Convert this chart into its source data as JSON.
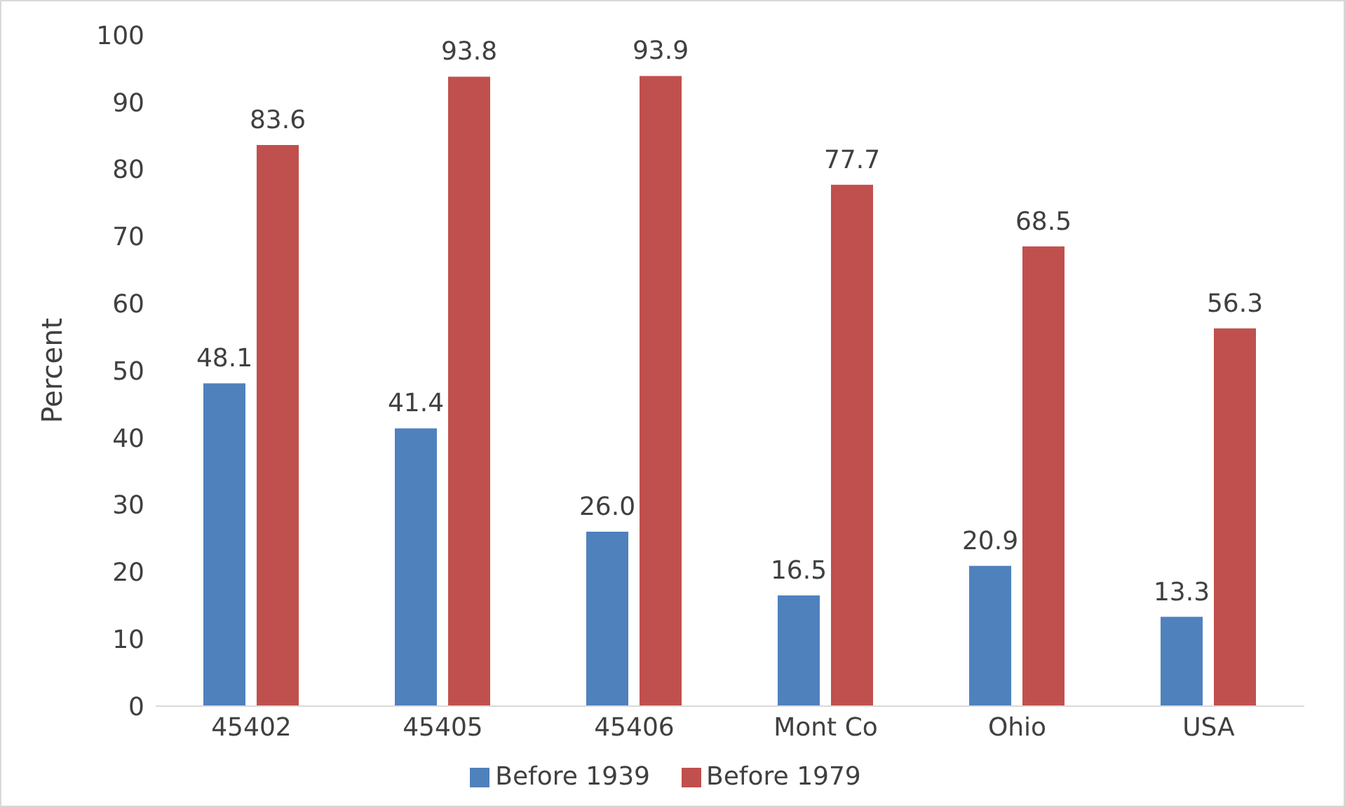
{
  "chart_data": {
    "type": "bar",
    "categories": [
      "45402",
      "45405",
      "45406",
      "Mont Co",
      "Ohio",
      "USA"
    ],
    "series": [
      {
        "name": "Before 1939",
        "color": "#4f81bd",
        "values": [
          48.1,
          41.4,
          26.0,
          16.5,
          20.9,
          13.3
        ],
        "value_labels": [
          "48.1",
          "41.4",
          "26.0",
          "16.5",
          "20.9",
          "13.3"
        ]
      },
      {
        "name": "Before 1979",
        "color": "#c0504d",
        "values": [
          83.6,
          93.8,
          93.9,
          77.7,
          68.5,
          56.3
        ],
        "value_labels": [
          "83.6",
          "93.8",
          "93.9",
          "77.7",
          "68.5",
          "56.3"
        ]
      }
    ],
    "ylabel": "Percent",
    "ylim": [
      0,
      100
    ],
    "yticks": [
      0,
      10,
      20,
      30,
      40,
      50,
      60,
      70,
      80,
      90,
      100
    ],
    "grid": false,
    "legend": "bottom"
  }
}
